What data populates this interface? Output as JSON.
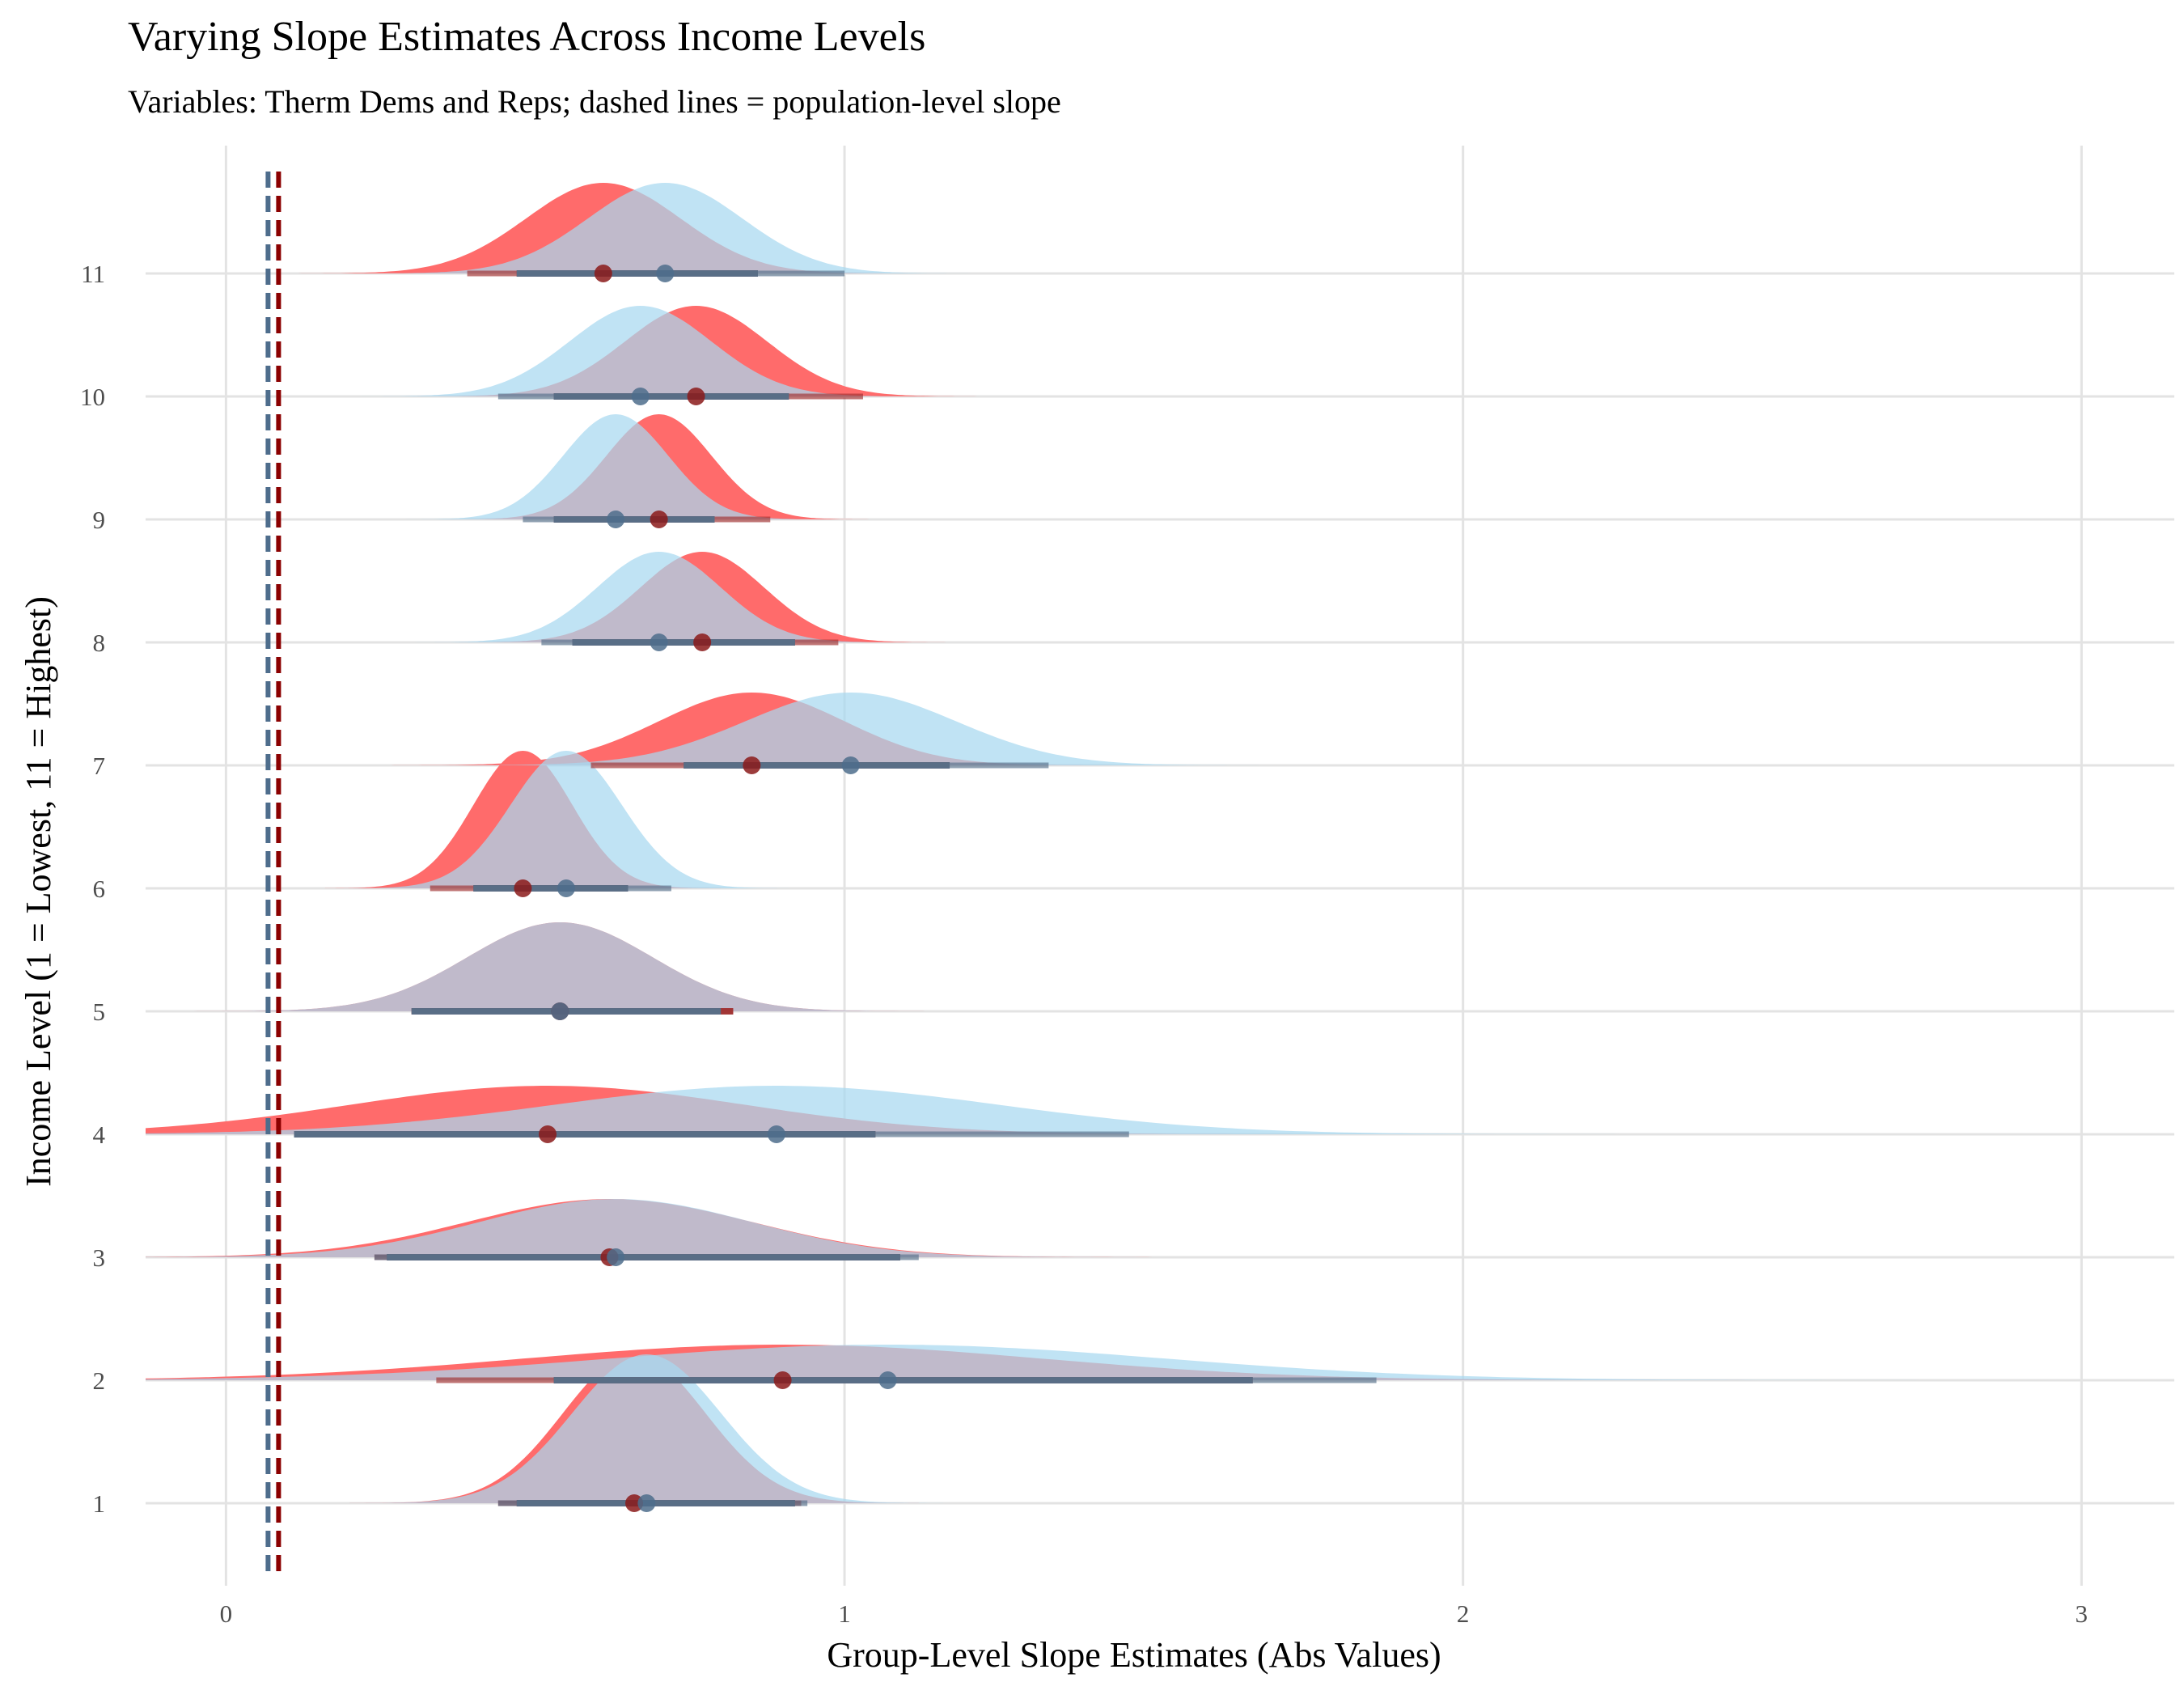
{
  "chart_data": {
    "type": "ridgeline",
    "title": "Varying Slope Estimates Across Income Levels",
    "subtitle": "Variables: Therm Dems and Reps; dashed lines = population-level slope",
    "xlabel": "Group-Level Slope Estimates (Abs Values)",
    "ylabel": "Income Level (1 = Lowest, 11 = Highest)",
    "xlim": [
      -0.13,
      3.15
    ],
    "x_ticks": [
      "0",
      "1",
      "2",
      "3"
    ],
    "categories": [
      "1",
      "2",
      "3",
      "4",
      "5",
      "6",
      "7",
      "8",
      "9",
      "10",
      "11"
    ],
    "grid": true,
    "population_slopes": [
      {
        "value": 0.068,
        "color": "#4e6d8c"
      },
      {
        "value": 0.085,
        "color": "#8b0000"
      }
    ],
    "series": [
      {
        "fill_color": "#ff6b6b",
        "point_color": "#8b1a1a",
        "interval_color": "#a03030",
        "estimates": [
          {
            "level": "1",
            "median": 0.66,
            "sd": 0.115,
            "inner": [
              0.47,
              0.92
            ],
            "outer": [
              0.44,
              0.93
            ],
            "peak": 0.92
          },
          {
            "level": "2",
            "median": 0.9,
            "sd": 0.42,
            "inner": [
              0.53,
              1.66
            ],
            "outer": [
              0.34,
              1.66
            ],
            "peak": 0.22
          },
          {
            "level": "3",
            "median": 0.62,
            "sd": 0.23,
            "inner": [
              0.26,
              1.09
            ],
            "outer": [
              0.24,
              1.09
            ],
            "peak": 0.36
          },
          {
            "level": "4",
            "median": 0.52,
            "sd": 0.32,
            "inner": [
              0.11,
              1.05
            ],
            "outer": [
              0.11,
              1.05
            ],
            "peak": 0.3
          },
          {
            "level": "5",
            "median": 0.54,
            "sd": 0.15,
            "inner": [
              0.3,
              0.82
            ],
            "outer": [
              0.3,
              0.82
            ],
            "peak": 0.55
          },
          {
            "level": "6",
            "median": 0.48,
            "sd": 0.08,
            "inner": [
              0.4,
              0.65
            ],
            "outer": [
              0.33,
              0.65
            ],
            "peak": 0.85
          },
          {
            "level": "7",
            "median": 0.85,
            "sd": 0.15,
            "inner": [
              0.74,
              1.17
            ],
            "outer": [
              0.59,
              1.17
            ],
            "peak": 0.45
          },
          {
            "level": "8",
            "median": 0.77,
            "sd": 0.1,
            "inner": [
              0.56,
              0.92
            ],
            "outer": [
              0.56,
              0.99
            ],
            "peak": 0.56
          },
          {
            "level": "9",
            "median": 0.7,
            "sd": 0.085,
            "inner": [
              0.53,
              0.79
            ],
            "outer": [
              0.53,
              0.88
            ],
            "peak": 0.65
          },
          {
            "level": "10",
            "median": 0.76,
            "sd": 0.115,
            "inner": [
              0.53,
              0.91
            ],
            "outer": [
              0.53,
              1.03
            ],
            "peak": 0.56
          },
          {
            "level": "11",
            "median": 0.61,
            "sd": 0.125,
            "inner": [
              0.47,
              0.86
            ],
            "outer": [
              0.39,
              0.86
            ],
            "peak": 0.56
          }
        ]
      },
      {
        "fill_color": "#a8d8f0",
        "point_color": "#4e6d8c",
        "interval_color": "#56708a",
        "estimates": [
          {
            "level": "1",
            "median": 0.68,
            "sd": 0.12,
            "inner": [
              0.47,
              0.92
            ],
            "outer": [
              0.44,
              0.94
            ],
            "peak": 0.92
          },
          {
            "level": "2",
            "median": 1.07,
            "sd": 0.45,
            "inner": [
              0.53,
              1.66
            ],
            "outer": [
              0.53,
              1.86
            ],
            "peak": 0.22
          },
          {
            "level": "3",
            "median": 0.63,
            "sd": 0.22,
            "inner": [
              0.26,
              1.09
            ],
            "outer": [
              0.24,
              1.12
            ],
            "peak": 0.36
          },
          {
            "level": "4",
            "median": 0.89,
            "sd": 0.36,
            "inner": [
              0.11,
              1.05
            ],
            "outer": [
              0.11,
              1.46
            ],
            "peak": 0.3
          },
          {
            "level": "5",
            "median": 0.54,
            "sd": 0.15,
            "inner": [
              0.3,
              0.8
            ],
            "outer": [
              0.3,
              0.8
            ],
            "peak": 0.55
          },
          {
            "level": "6",
            "median": 0.55,
            "sd": 0.09,
            "inner": [
              0.4,
              0.65
            ],
            "outer": [
              0.4,
              0.72
            ],
            "peak": 0.85
          },
          {
            "level": "7",
            "median": 1.01,
            "sd": 0.17,
            "inner": [
              0.74,
              1.17
            ],
            "outer": [
              0.74,
              1.33
            ],
            "peak": 0.45
          },
          {
            "level": "8",
            "median": 0.7,
            "sd": 0.1,
            "inner": [
              0.56,
              0.92
            ],
            "outer": [
              0.51,
              0.92
            ],
            "peak": 0.56
          },
          {
            "level": "9",
            "median": 0.63,
            "sd": 0.085,
            "inner": [
              0.53,
              0.79
            ],
            "outer": [
              0.48,
              0.79
            ],
            "peak": 0.65
          },
          {
            "level": "10",
            "median": 0.67,
            "sd": 0.115,
            "inner": [
              0.53,
              0.91
            ],
            "outer": [
              0.44,
              0.91
            ],
            "peak": 0.56
          },
          {
            "level": "11",
            "median": 0.71,
            "sd": 0.125,
            "inner": [
              0.47,
              0.86
            ],
            "outer": [
              0.47,
              1.0
            ],
            "peak": 0.56
          }
        ]
      }
    ]
  }
}
